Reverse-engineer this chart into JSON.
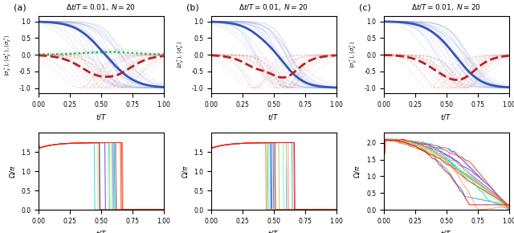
{
  "title": "$\\Delta t/T = 0.01,\\;  N = 20$",
  "panel_labels": [
    "(a)",
    "(b)",
    "(c)"
  ],
  "top_ylabel_a": "$\\langle \\sigma_x^* \\rangle, \\langle \\sigma_y^* \\rangle, \\langle \\sigma_z^* \\rangle$",
  "top_ylabel_b": "$\\langle \\sigma_y^* \\rangle, \\langle \\sigma_z^* \\rangle$",
  "top_ylabel_c": "$\\langle \\sigma_y^* \\rangle, \\langle \\sigma_z^* \\rangle$",
  "bottom_ylabel": "$\\Omega/\\pi$",
  "xlabel": "$t/T$",
  "n_traj": 20,
  "blue_color": "#3355bb",
  "blue_light": "#8899dd",
  "red_color": "#bb2222",
  "red_light": "#dd8888",
  "green_color": "#229944",
  "green_light": "#88cc99",
  "omega_max_ab": 1.75,
  "omega_spike_ab": 1.85,
  "omega_max_c": 2.1,
  "omega_spike_c": 2.18
}
